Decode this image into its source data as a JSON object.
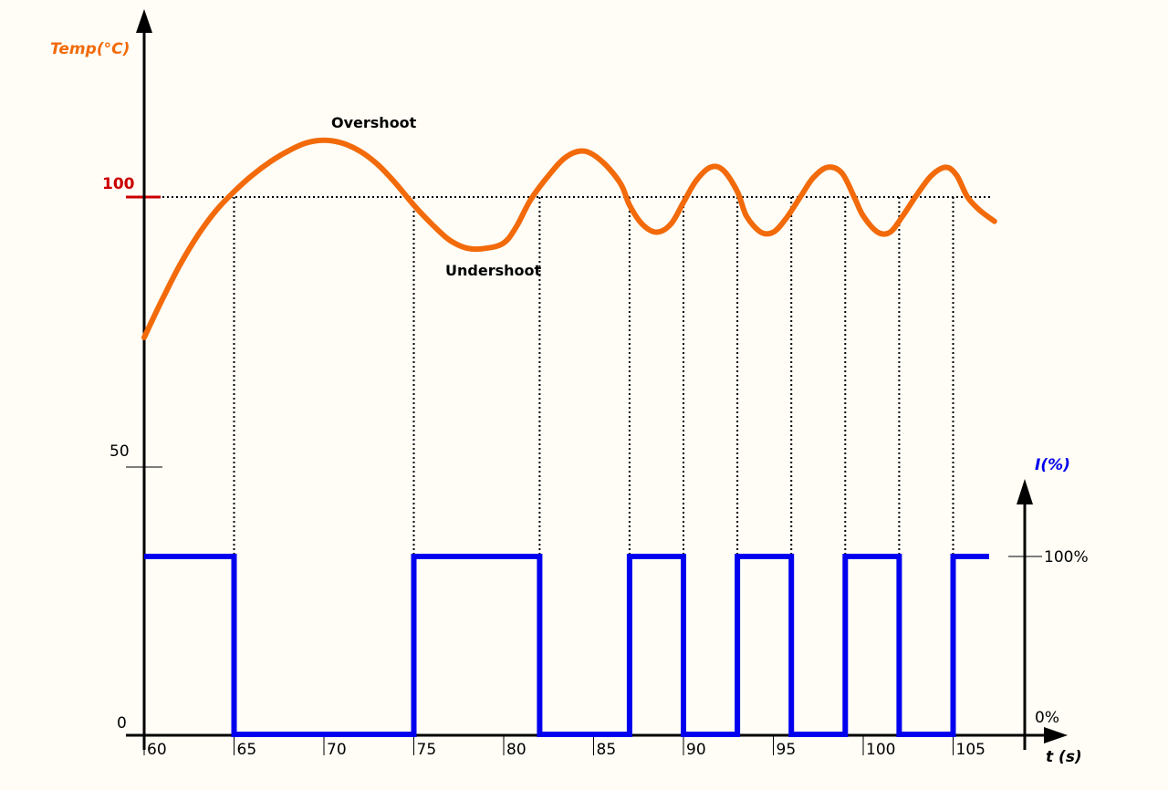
{
  "chart_data": {
    "type": "line",
    "x_axis": {
      "label": "t (s)",
      "range": [
        60,
        107
      ],
      "ticks": [
        "60",
        "65",
        "70",
        "75",
        "80",
        "85",
        "90",
        "95",
        "100",
        "105"
      ]
    },
    "y_axis_temp": {
      "label": "Temp(°C)",
      "range": [
        0,
        150
      ],
      "ticks": [
        "0",
        "50",
        "100"
      ],
      "setpoint": 100
    },
    "y_axis_current": {
      "label": "I(%)",
      "ticks": [
        "0%",
        "100%"
      ]
    },
    "annotations": [
      "Overshoot",
      "Undershoot"
    ],
    "colors": {
      "temp": "#f26a0a",
      "current": "#0000ee",
      "setpoint": "#cc0000"
    },
    "temperature": [
      [
        60.0,
        74
      ],
      [
        61.0,
        81
      ],
      [
        62.0,
        87.5
      ],
      [
        63.0,
        93
      ],
      [
        64.0,
        97.5
      ],
      [
        65.0,
        101
      ],
      [
        66.0,
        104
      ],
      [
        67.0,
        106.5
      ],
      [
        68.0,
        108.5
      ],
      [
        69.0,
        110
      ],
      [
        70.0,
        110.5
      ],
      [
        71.0,
        110
      ],
      [
        72.0,
        108.5
      ],
      [
        73.0,
        106
      ],
      [
        74.0,
        102.5
      ],
      [
        75.0,
        98.5
      ],
      [
        76.0,
        95
      ],
      [
        77.0,
        92
      ],
      [
        78.0,
        90.5
      ],
      [
        79.0,
        90.5
      ],
      [
        80.0,
        91.5
      ],
      [
        80.7,
        94.5
      ],
      [
        81.5,
        99.5
      ],
      [
        82.5,
        104
      ],
      [
        83.5,
        107.5
      ],
      [
        84.5,
        108.5
      ],
      [
        85.5,
        106.5
      ],
      [
        86.5,
        102.5
      ],
      [
        87.0,
        98.5
      ],
      [
        87.7,
        95
      ],
      [
        88.5,
        93.5
      ],
      [
        89.3,
        95
      ],
      [
        90.0,
        99
      ],
      [
        90.7,
        103
      ],
      [
        91.5,
        105.5
      ],
      [
        92.2,
        105
      ],
      [
        93.0,
        101
      ],
      [
        93.5,
        96.5
      ],
      [
        94.3,
        93.5
      ],
      [
        95.0,
        93.5
      ],
      [
        95.7,
        96
      ],
      [
        96.5,
        100
      ],
      [
        97.2,
        103.5
      ],
      [
        98.0,
        105.5
      ],
      [
        98.8,
        104.5
      ],
      [
        99.5,
        100
      ],
      [
        100.0,
        96.5
      ],
      [
        100.8,
        93.5
      ],
      [
        101.5,
        93.5
      ],
      [
        102.2,
        96.5
      ],
      [
        103.0,
        100.5
      ],
      [
        103.8,
        104
      ],
      [
        104.6,
        105.5
      ],
      [
        105.2,
        104
      ],
      [
        105.8,
        100
      ],
      [
        106.5,
        97.5
      ],
      [
        107.3,
        95.5
      ]
    ],
    "current": [
      [
        60,
        100
      ],
      [
        65,
        100
      ],
      [
        65,
        0
      ],
      [
        75,
        0
      ],
      [
        75,
        100
      ],
      [
        82,
        100
      ],
      [
        82,
        0
      ],
      [
        87,
        0
      ],
      [
        87,
        100
      ],
      [
        90,
        100
      ],
      [
        90,
        0
      ],
      [
        93,
        0
      ],
      [
        93,
        100
      ],
      [
        96,
        100
      ],
      [
        96,
        0
      ],
      [
        99,
        0
      ],
      [
        99,
        100
      ],
      [
        102,
        100
      ],
      [
        102,
        0
      ],
      [
        105,
        0
      ],
      [
        105,
        100
      ],
      [
        107,
        100
      ]
    ],
    "crossing_times": [
      65,
      75,
      82,
      87,
      90,
      93,
      96,
      99,
      102,
      105
    ]
  }
}
